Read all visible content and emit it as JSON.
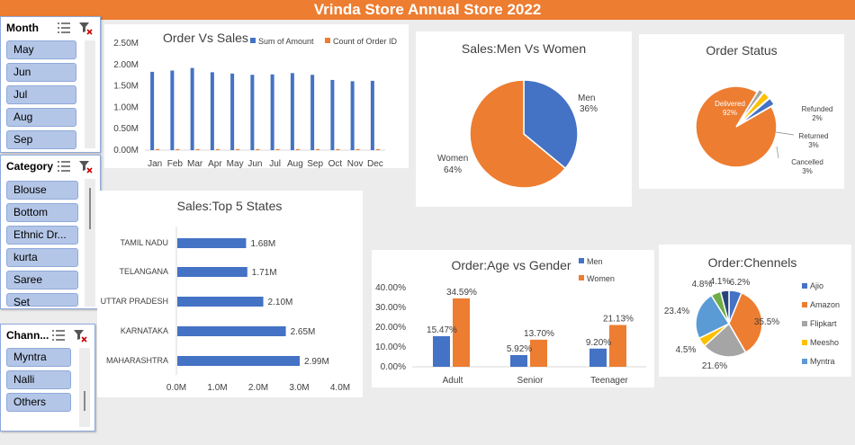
{
  "title": "Vrinda Store Annual Store 2022",
  "colors": {
    "blue": "#4472c4",
    "orange": "#ed7d31",
    "gray": "#a5a5a5",
    "yellow": "#ffc000",
    "lightblue": "#5b9bd5",
    "green": "#70ad47",
    "navy": "#264478"
  },
  "slicers": {
    "month": {
      "title": "Month",
      "items": [
        "May",
        "Jun",
        "Jul",
        "Aug",
        "Sep"
      ]
    },
    "category": {
      "title": "Category",
      "items": [
        "Blouse",
        "Bottom",
        "Ethnic Dr...",
        "kurta",
        "Saree",
        "Set"
      ]
    },
    "channel": {
      "title": "Chann...",
      "items": [
        "Myntra",
        "Nalli",
        "Others"
      ]
    }
  },
  "charts": {
    "order_vs_sales": {
      "title": "Order Vs Sales",
      "chart_data": {
        "type": "bar",
        "title": "Order Vs Sales",
        "categories": [
          "Jan",
          "Feb",
          "Mar",
          "Apr",
          "May",
          "Jun",
          "Jul",
          "Aug",
          "Sep",
          "Oct",
          "Nov",
          "Dec"
        ],
        "series": [
          {
            "name": "Sum of Amount",
            "values": [
              1.83,
              1.86,
              1.92,
              1.82,
              1.79,
              1.76,
              1.77,
              1.8,
              1.76,
              1.64,
              1.61,
              1.62
            ]
          },
          {
            "name": "Count of Order ID",
            "values": [
              0.003,
              0.003,
              0.003,
              0.003,
              0.003,
              0.003,
              0.003,
              0.003,
              0.003,
              0.003,
              0.003,
              0.003
            ]
          }
        ],
        "y_ticks": [
          "0.00M",
          "0.50M",
          "1.00M",
          "1.50M",
          "2.00M",
          "2.50M"
        ],
        "ylim": [
          0,
          2.5
        ],
        "unit": "M",
        "legend": "top-right"
      }
    },
    "men_vs_women": {
      "title": "Sales:Men Vs Women",
      "chart_data": {
        "type": "pie",
        "title": "Sales:Men Vs Women",
        "labels": [
          "Men",
          "Women"
        ],
        "values": [
          36,
          64
        ],
        "value_labels": [
          "36%",
          "64%"
        ]
      }
    },
    "order_status": {
      "title": "Order Status",
      "chart_data": {
        "type": "pie",
        "title": "Order Status",
        "labels": [
          "Delivered",
          "Refunded",
          "Returned",
          "Cancelled"
        ],
        "values": [
          92,
          2,
          3,
          3
        ],
        "value_labels": [
          "92%",
          "2%",
          "3%",
          "3%"
        ]
      }
    },
    "top5_states": {
      "title": "Sales:Top 5 States",
      "chart_data": {
        "type": "bar",
        "orientation": "horizontal",
        "title": "Sales:Top 5 States",
        "categories": [
          "TAMIL NADU",
          "TELANGANA",
          "UTTAR PRADESH",
          "KARNATAKA",
          "MAHARASHTRA"
        ],
        "values": [
          1.68,
          1.71,
          2.1,
          2.65,
          2.99
        ],
        "value_labels": [
          "1.68M",
          "1.71M",
          "2.10M",
          "2.65M",
          "2.99M"
        ],
        "x_ticks": [
          "0.0M",
          "1.0M",
          "2.0M",
          "3.0M",
          "4.0M"
        ],
        "xlim": [
          0,
          4
        ]
      }
    },
    "age_vs_gender": {
      "title": "Order:Age vs Gender",
      "chart_data": {
        "type": "bar",
        "title": "Order:Age vs Gender",
        "categories": [
          "Adult",
          "Senior",
          "Teenager"
        ],
        "series": [
          {
            "name": "Men",
            "values": [
              15.47,
              5.92,
              9.2
            ],
            "labels": [
              "15.47%",
              "5.92%",
              "9.20%"
            ]
          },
          {
            "name": "Women",
            "values": [
              34.59,
              13.7,
              21.13
            ],
            "labels": [
              "34.59%",
              "13.70%",
              "21.13%"
            ]
          }
        ],
        "y_ticks": [
          "0.00%",
          "10.00%",
          "20.00%",
          "30.00%",
          "40.00%"
        ],
        "ylim": [
          0,
          40
        ],
        "legend": "top-right"
      }
    },
    "channels": {
      "title": "Order:Chennels",
      "chart_data": {
        "type": "pie",
        "title": "Order:Chennels",
        "legend": [
          "Ajio",
          "Amazon",
          "Flipkart",
          "Meesho",
          "Myntra"
        ],
        "slices": [
          {
            "label": "6.2%",
            "value": 6.2
          },
          {
            "label": "35.5%",
            "value": 35.5
          },
          {
            "label": "21.6%",
            "value": 21.6
          },
          {
            "label": "4.5%",
            "value": 4.5
          },
          {
            "label": "23.4%",
            "value": 23.4
          },
          {
            "label": "4.8%",
            "value": 4.8
          },
          {
            "label": "4.1%",
            "value": 4.1
          }
        ]
      }
    }
  }
}
